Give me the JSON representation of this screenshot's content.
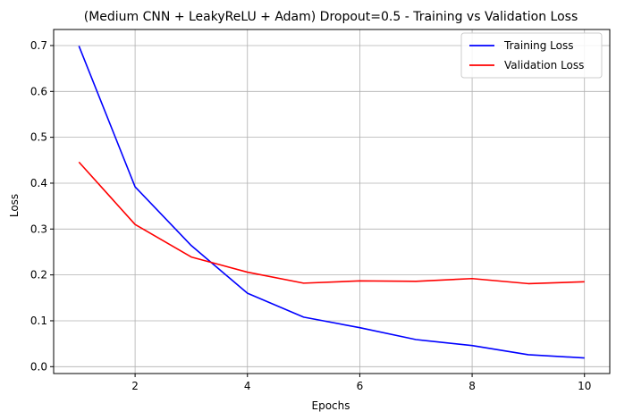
{
  "chart_data": {
    "type": "line",
    "title": "(Medium CNN + LeakyReLU + Adam) Dropout=0.5 - Training vs Validation Loss",
    "xlabel": "Epochs",
    "ylabel": "Loss",
    "x": [
      1,
      2,
      3,
      4,
      5,
      6,
      7,
      8,
      9,
      10
    ],
    "xlim": [
      0.55,
      10.45
    ],
    "ylim": [
      -0.015,
      0.735
    ],
    "xticks": [
      2,
      4,
      6,
      8,
      10
    ],
    "yticks": [
      0.0,
      0.1,
      0.2,
      0.3,
      0.4,
      0.5,
      0.6,
      0.7
    ],
    "ytick_labels": [
      "0.0",
      "0.1",
      "0.2",
      "0.3",
      "0.4",
      "0.5",
      "0.6",
      "0.7"
    ],
    "grid": true,
    "legend_position": "top-right",
    "series": [
      {
        "name": "Training Loss",
        "color": "#0000ff",
        "values": [
          0.699,
          0.392,
          0.264,
          0.16,
          0.108,
          0.085,
          0.059,
          0.046,
          0.026,
          0.019
        ]
      },
      {
        "name": "Validation Loss",
        "color": "#ff0000",
        "values": [
          0.446,
          0.31,
          0.239,
          0.206,
          0.182,
          0.187,
          0.186,
          0.192,
          0.181,
          0.185
        ]
      }
    ]
  }
}
